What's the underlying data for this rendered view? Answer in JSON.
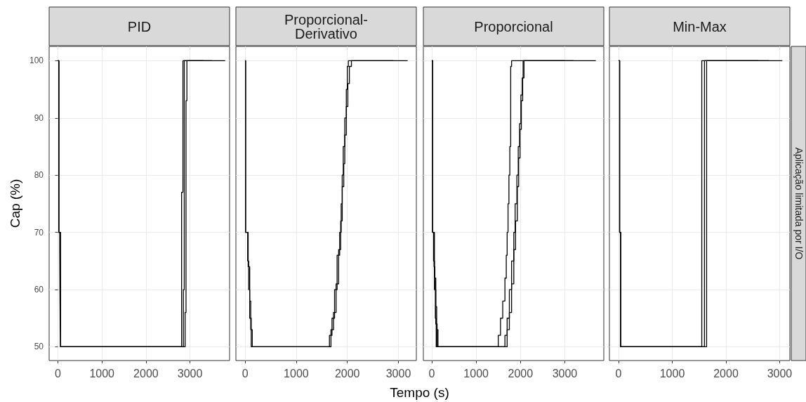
{
  "chart_data": [
    {
      "type": "step",
      "title": "PID",
      "ylabel": "Cap (%)",
      "xlim": [
        -200,
        3900
      ],
      "xticks": [
        0,
        1000,
        2000,
        3000
      ],
      "ylim": [
        47.6,
        102.5
      ],
      "yticks": [
        50,
        60,
        70,
        80,
        90,
        100
      ],
      "grid": true,
      "series": [
        {
          "color": "#000000",
          "x": [
            0,
            20,
            40,
            50,
            60,
            2810,
            2840,
            3800
          ],
          "values": [
            100,
            70,
            67,
            54,
            50,
            77,
            100,
            100
          ]
        },
        {
          "color": "#000000",
          "x": [
            0,
            20,
            60,
            2850,
            2870,
            3500
          ],
          "values": [
            100,
            70,
            50,
            60,
            100,
            100
          ]
        },
        {
          "color": "#000000",
          "x": [
            0,
            20,
            60,
            2890,
            2910,
            2930,
            3300
          ],
          "values": [
            100,
            70,
            50,
            56,
            93,
            100,
            100
          ]
        }
      ]
    },
    {
      "type": "step",
      "title": "Proporcional-Derivativo",
      "xlim": [
        -180,
        3350
      ],
      "xticks": [
        0,
        1000,
        2000,
        3000
      ],
      "ylim": [
        47.6,
        102.5
      ],
      "yticks": [
        50,
        60,
        70,
        80,
        90,
        100
      ],
      "grid": true,
      "tick_labels": "x",
      "xlabel": "Tempo (s)",
      "series": [
        {
          "color": "#000000",
          "x": [
            0,
            10,
            50,
            70,
            90,
            120,
            1650,
            1700,
            1750,
            1800,
            1850,
            1880,
            1900,
            1920,
            1950,
            1980,
            2000,
            2020,
            3180
          ],
          "values": [
            100,
            70,
            65,
            60,
            55,
            50,
            52,
            55,
            60,
            66,
            70,
            75,
            80,
            85,
            90,
            95,
            99,
            100,
            100
          ]
        },
        {
          "color": "#000000",
          "x": [
            0,
            10,
            60,
            90,
            110,
            140,
            1680,
            1730,
            1780,
            1830,
            1870,
            1900,
            1930,
            1950,
            1980,
            2010,
            2040,
            2080,
            2900
          ],
          "values": [
            100,
            70,
            64,
            58,
            53,
            50,
            53,
            56,
            61,
            67,
            72,
            78,
            82,
            87,
            92,
            96,
            99,
            100,
            100
          ]
        }
      ]
    },
    {
      "type": "step",
      "title": "Proporcional",
      "xlim": [
        -190,
        3880
      ],
      "xticks": [
        0,
        1000,
        2000,
        3000
      ],
      "ylim": [
        47.6,
        102.5
      ],
      "yticks": [
        50,
        60,
        70,
        80,
        90,
        100
      ],
      "grid": true,
      "tick_labels": "x",
      "series": [
        {
          "color": "#000000",
          "x": [
            0,
            20,
            40,
            60,
            80,
            100,
            1500,
            1550,
            1600,
            1650,
            1680,
            1700,
            1720,
            1740,
            1760,
            1780,
            1800,
            3700
          ],
          "values": [
            100,
            70,
            65,
            60,
            55,
            50,
            52,
            55,
            58,
            62,
            66,
            70,
            75,
            80,
            85,
            99,
            100,
            100
          ]
        },
        {
          "color": "#000000",
          "x": [
            0,
            20,
            50,
            70,
            90,
            120,
            1650,
            1700,
            1750,
            1800,
            1850,
            1880,
            1920,
            1950,
            1980,
            2010,
            2040,
            2060,
            3200
          ],
          "values": [
            100,
            70,
            64,
            60,
            54,
            50,
            52,
            55,
            60,
            65,
            70,
            75,
            80,
            85,
            89,
            94,
            97,
            100,
            100
          ]
        },
        {
          "color": "#000000",
          "x": [
            0,
            20,
            60,
            90,
            110,
            140,
            1700,
            1750,
            1800,
            1850,
            1890,
            1930,
            1960,
            1990,
            2020,
            2050,
            2080,
            3000
          ],
          "values": [
            100,
            70,
            62,
            57,
            53,
            50,
            53,
            56,
            61,
            67,
            72,
            78,
            83,
            88,
            93,
            97,
            100,
            100
          ]
        }
      ]
    },
    {
      "type": "step",
      "title": "Min-Max",
      "xlim": [
        -170,
        3190
      ],
      "xticks": [
        0,
        1000,
        2000,
        3000
      ],
      "ylim": [
        47.6,
        102.5
      ],
      "yticks": [
        50,
        60,
        70,
        80,
        90,
        100
      ],
      "grid": true,
      "tick_labels": "x",
      "annotations": [
        "Aplicação limitada por I/O"
      ],
      "series": [
        {
          "color": "#000000",
          "x": [
            0,
            20,
            40,
            1550,
            3050
          ],
          "values": [
            100,
            70,
            50,
            100,
            100
          ]
        },
        {
          "color": "#000000",
          "x": [
            0,
            20,
            40,
            1600,
            2800
          ],
          "values": [
            100,
            70,
            50,
            100,
            100
          ]
        },
        {
          "color": "#000000",
          "x": [
            0,
            20,
            40,
            1640,
            2600
          ],
          "values": [
            100,
            70,
            50,
            100,
            100
          ]
        }
      ]
    }
  ]
}
